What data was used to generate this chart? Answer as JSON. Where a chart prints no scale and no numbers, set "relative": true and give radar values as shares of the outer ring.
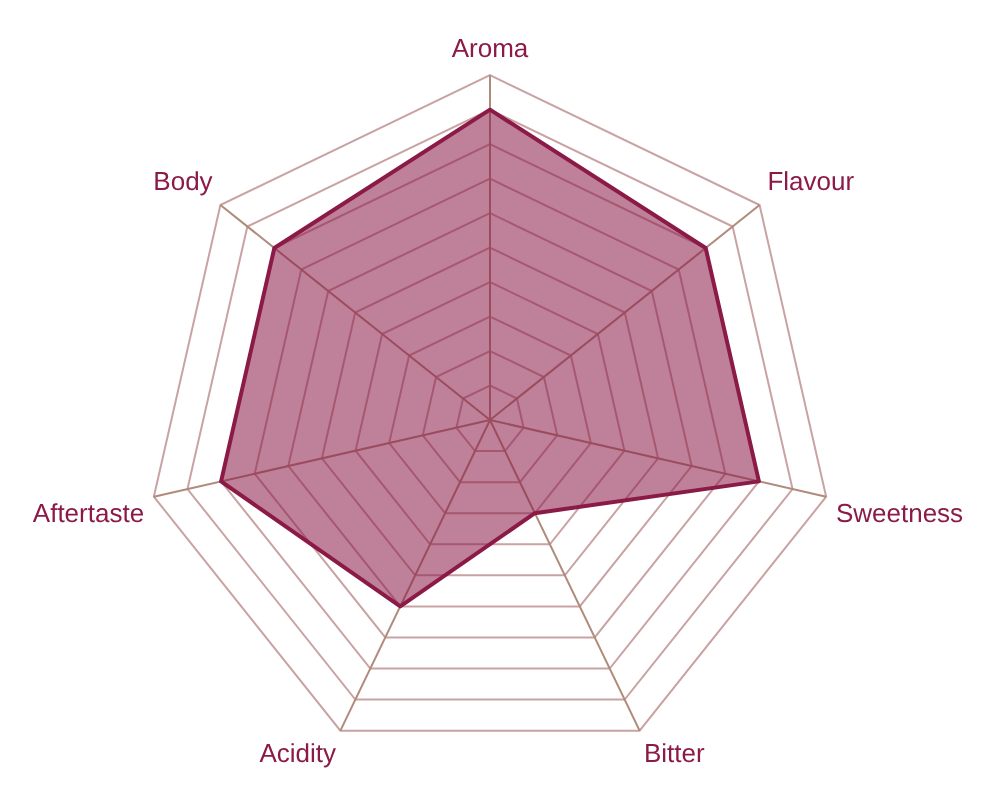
{
  "chart_data": {
    "type": "radar",
    "relative": true,
    "categories": [
      "Aroma",
      "Flavour",
      "Sweetness",
      "Bitter",
      "Acidity",
      "Aftertaste",
      "Body"
    ],
    "series": [
      {
        "color": "#8b1a47",
        "values": [
          0.9,
          0.8,
          0.8,
          0.3,
          0.6,
          0.8,
          0.8
        ]
      }
    ]
  }
}
